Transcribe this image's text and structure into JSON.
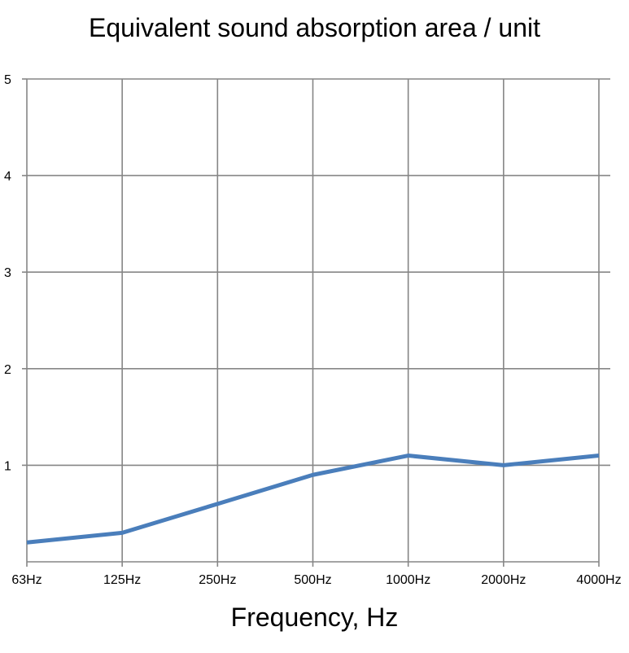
{
  "chart_data": {
    "type": "line",
    "title": "Equivalent sound absorption area / unit",
    "xlabel": "Frequency, Hz",
    "ylabel": "",
    "categories": [
      "63Hz",
      "125Hz",
      "250Hz",
      "500Hz",
      "1000Hz",
      "2000Hz",
      "4000Hz"
    ],
    "series": [
      {
        "values": [
          0.2,
          0.3,
          0.6,
          0.9,
          1.1,
          1.0,
          1.1
        ],
        "color": "#4a7ebb"
      }
    ],
    "ylim": [
      0,
      5
    ],
    "yticks": [
      "1",
      "2",
      "3",
      "4",
      "5"
    ],
    "grid": true,
    "legend": "none",
    "gridline_color": "#868686"
  }
}
